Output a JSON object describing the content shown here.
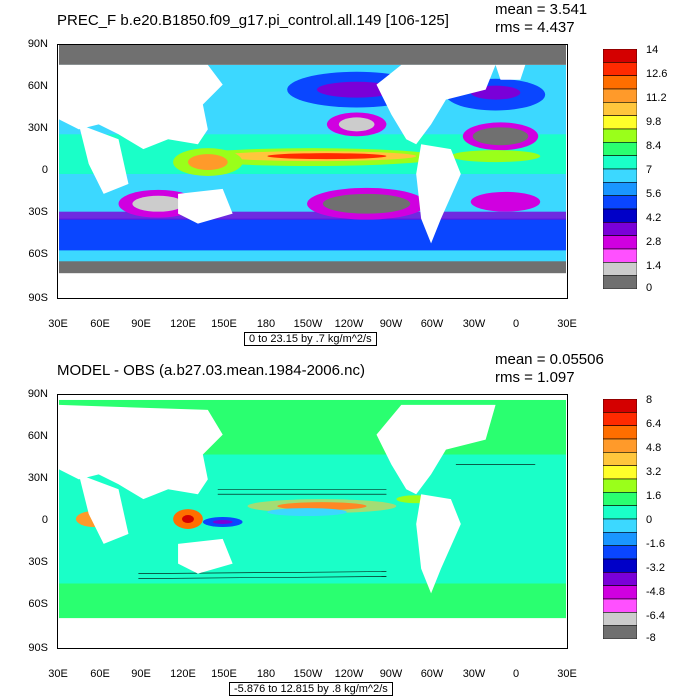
{
  "top_panel": {
    "title": "PREC_F b.e20.B1850.f09_g17.pi_control.all.149 [106-125]",
    "mean_text": "mean = 3.541",
    "rms_text": "rms = 4.437",
    "range_text": "0 to 23.15 by .7 kg/m^2/s",
    "lat_labels": [
      "90N",
      "60N",
      "30N",
      "0",
      "30S",
      "60S",
      "90S"
    ],
    "lon_labels": [
      "30E",
      "60E",
      "90E",
      "120E",
      "150E",
      "180",
      "150W",
      "120W",
      "90W",
      "60W",
      "30W",
      "0",
      "30E"
    ],
    "colorbar_labels": [
      "14",
      "12.6",
      "11.2",
      "9.8",
      "8.4",
      "7",
      "5.6",
      "4.2",
      "2.8",
      "1.4",
      "0"
    ],
    "colorbar_colors": [
      "#d40000",
      "#ff2a00",
      "#ff6e00",
      "#ff9a2a",
      "#ffc63c",
      "#ffff2a",
      "#9aff1a",
      "#2aff70",
      "#1affc8",
      "#3cd8ff",
      "#1a96ff",
      "#0a46ff",
      "#0000c8",
      "#7a00d8",
      "#d000e0",
      "#ff50ff",
      "#cccccc",
      "#707070"
    ]
  },
  "bottom_panel": {
    "title": "MODEL - OBS (a.b27.03.mean.1984-2006.nc)",
    "mean_text": "mean = 0.05506",
    "rms_text": "rms = 1.097",
    "range_text": "-5.876 to 12.815 by .8 kg/m^2/s",
    "lat_labels": [
      "90N",
      "60N",
      "30N",
      "0",
      "30S",
      "60S",
      "90S"
    ],
    "lon_labels": [
      "30E",
      "60E",
      "90E",
      "120E",
      "150E",
      "180",
      "150W",
      "120W",
      "90W",
      "60W",
      "30W",
      "0",
      "30E"
    ],
    "colorbar_labels": [
      "8",
      "6.4",
      "4.8",
      "3.2",
      "1.6",
      "0",
      "-1.6",
      "-3.2",
      "-4.8",
      "-6.4",
      "-8"
    ],
    "colorbar_colors": [
      "#d40000",
      "#ff2a00",
      "#ff6e00",
      "#ff9a2a",
      "#ffc63c",
      "#ffff2a",
      "#9aff1a",
      "#2aff70",
      "#1affc8",
      "#3cd8ff",
      "#1a96ff",
      "#0a46ff",
      "#0000c8",
      "#7a00d8",
      "#d000e0",
      "#ff50ff",
      "#cccccc",
      "#707070"
    ]
  }
}
